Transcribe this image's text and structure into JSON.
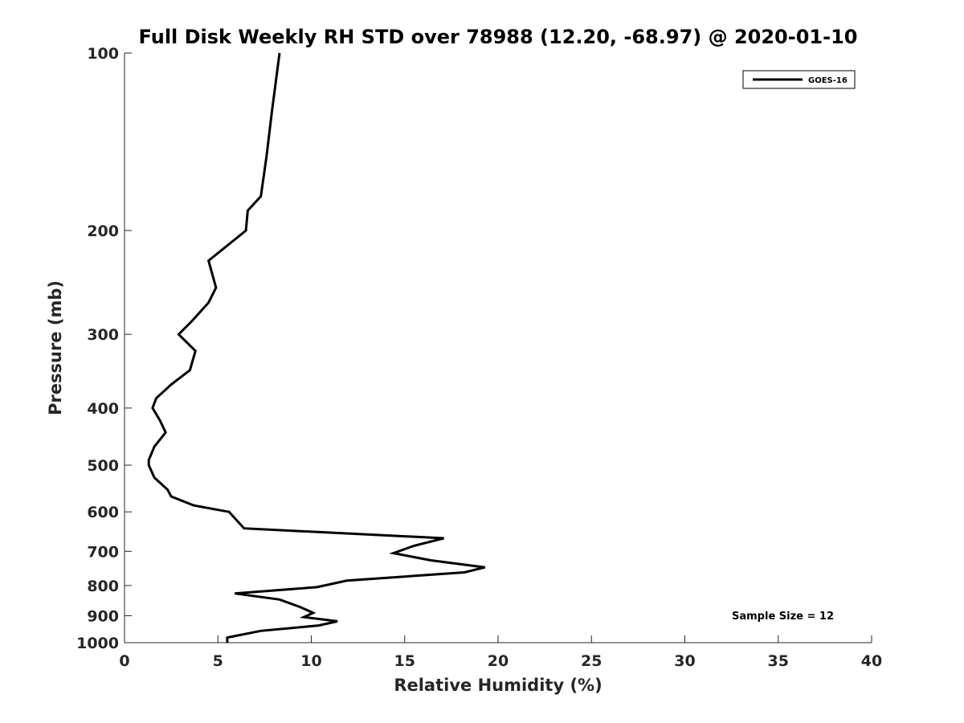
{
  "chart_data": {
    "type": "line",
    "title": "Full Disk Weekly RH STD over 78988 (12.20, -68.97) @ 2020-01-10",
    "xlabel": "Relative Humidity (%)",
    "ylabel": "Pressure (mb)",
    "xlim": [
      0,
      40
    ],
    "ylim": [
      100,
      1000
    ],
    "y_scale": "log",
    "y_reversed": true,
    "xticks": [
      0,
      5,
      10,
      15,
      20,
      25,
      30,
      35,
      40
    ],
    "yticks": [
      100,
      200,
      300,
      400,
      500,
      600,
      700,
      800,
      900,
      1000
    ],
    "grid": false,
    "legend_position": "top-right",
    "series": [
      {
        "name": "GOES-16",
        "color": "#000000",
        "points": [
          [
            8.3,
            100
          ],
          [
            7.9,
            125
          ],
          [
            7.6,
            150
          ],
          [
            7.3,
            175
          ],
          [
            6.6,
            185
          ],
          [
            6.5,
            200
          ],
          [
            4.5,
            225
          ],
          [
            4.9,
            250
          ],
          [
            4.5,
            265
          ],
          [
            3.6,
            285
          ],
          [
            2.9,
            300
          ],
          [
            3.8,
            320
          ],
          [
            3.5,
            345
          ],
          [
            2.5,
            365
          ],
          [
            1.7,
            385
          ],
          [
            1.5,
            400
          ],
          [
            1.9,
            420
          ],
          [
            2.2,
            440
          ],
          [
            1.6,
            465
          ],
          [
            1.3,
            490
          ],
          [
            1.3,
            500
          ],
          [
            1.6,
            525
          ],
          [
            2.3,
            550
          ],
          [
            2.5,
            565
          ],
          [
            3.7,
            585
          ],
          [
            5.6,
            600
          ],
          [
            6.4,
            640
          ],
          [
            17.1,
            665
          ],
          [
            15.5,
            685
          ],
          [
            14.4,
            705
          ],
          [
            16.4,
            725
          ],
          [
            19.3,
            745
          ],
          [
            18.2,
            760
          ],
          [
            11.9,
            785
          ],
          [
            10.3,
            805
          ],
          [
            5.9,
            825
          ],
          [
            8.3,
            845
          ],
          [
            9.4,
            870
          ],
          [
            10.1,
            890
          ],
          [
            9.6,
            905
          ],
          [
            11.4,
            920
          ],
          [
            10.4,
            935
          ],
          [
            7.3,
            955
          ],
          [
            5.5,
            980
          ],
          [
            5.5,
            1000
          ]
        ]
      }
    ],
    "annotation": "Sample Size = 12"
  }
}
